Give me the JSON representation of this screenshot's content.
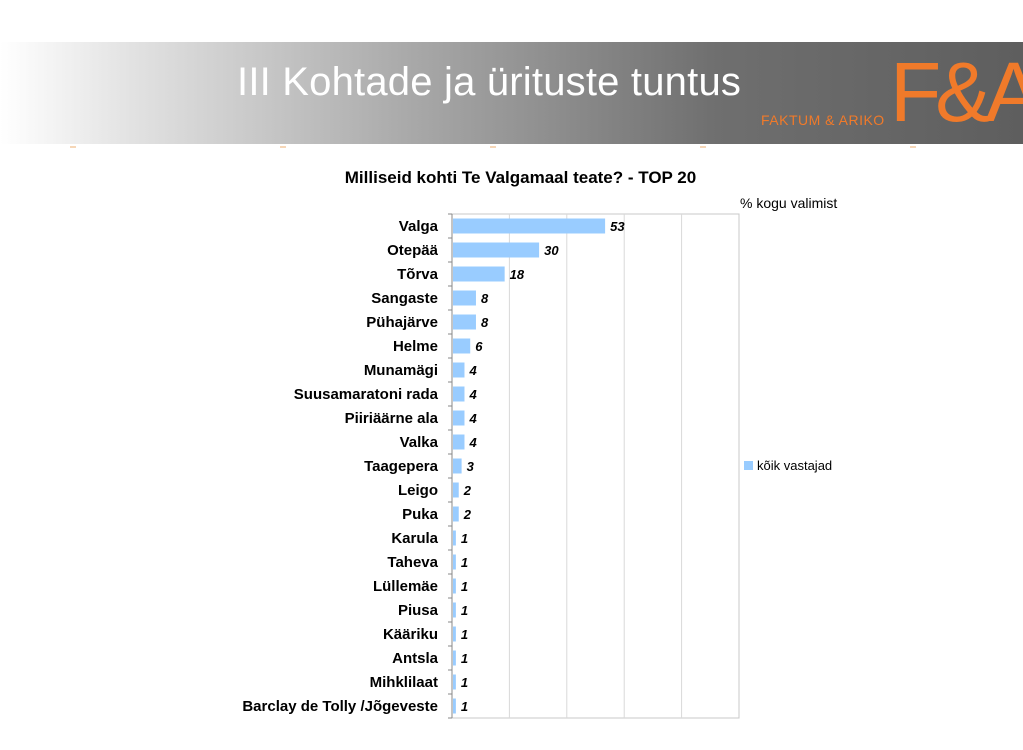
{
  "slide": {
    "title": "III Kohtade ja ürituste tuntus",
    "logo_text": "F&A",
    "logo_subtext": "FAKTUM & ARIKO"
  },
  "colors": {
    "bar": "#99ccff",
    "logo": "#f07a2a"
  },
  "chart_data": {
    "type": "bar",
    "orientation": "horizontal",
    "title": "Milliseid kohti Te Valgamaal teate? - TOP 20",
    "unit_note": "% kogu valimist",
    "categories": [
      "Valga",
      "Otepää",
      "Tõrva",
      "Sangaste",
      "Pühajärve",
      "Helme",
      "Munamägi",
      "Suusamaratoni rada",
      "Piiriäärne ala",
      "Valka",
      "Taagepera",
      "Leigo",
      "Puka",
      "Karula",
      "Taheva",
      "Lüllemäe",
      "Piusa",
      "Kääriku",
      "Antsla",
      "Mihklilaat",
      "Barclay de Tolly /Jõgeveste"
    ],
    "series": [
      {
        "name": "kõik vastajad",
        "values": [
          53,
          30,
          18,
          8,
          8,
          6,
          4,
          4,
          4,
          4,
          3,
          2,
          2,
          1,
          1,
          1,
          1,
          1,
          1,
          1,
          1
        ]
      }
    ],
    "xlim": [
      0,
      100
    ],
    "grid": true,
    "legend": "right"
  }
}
